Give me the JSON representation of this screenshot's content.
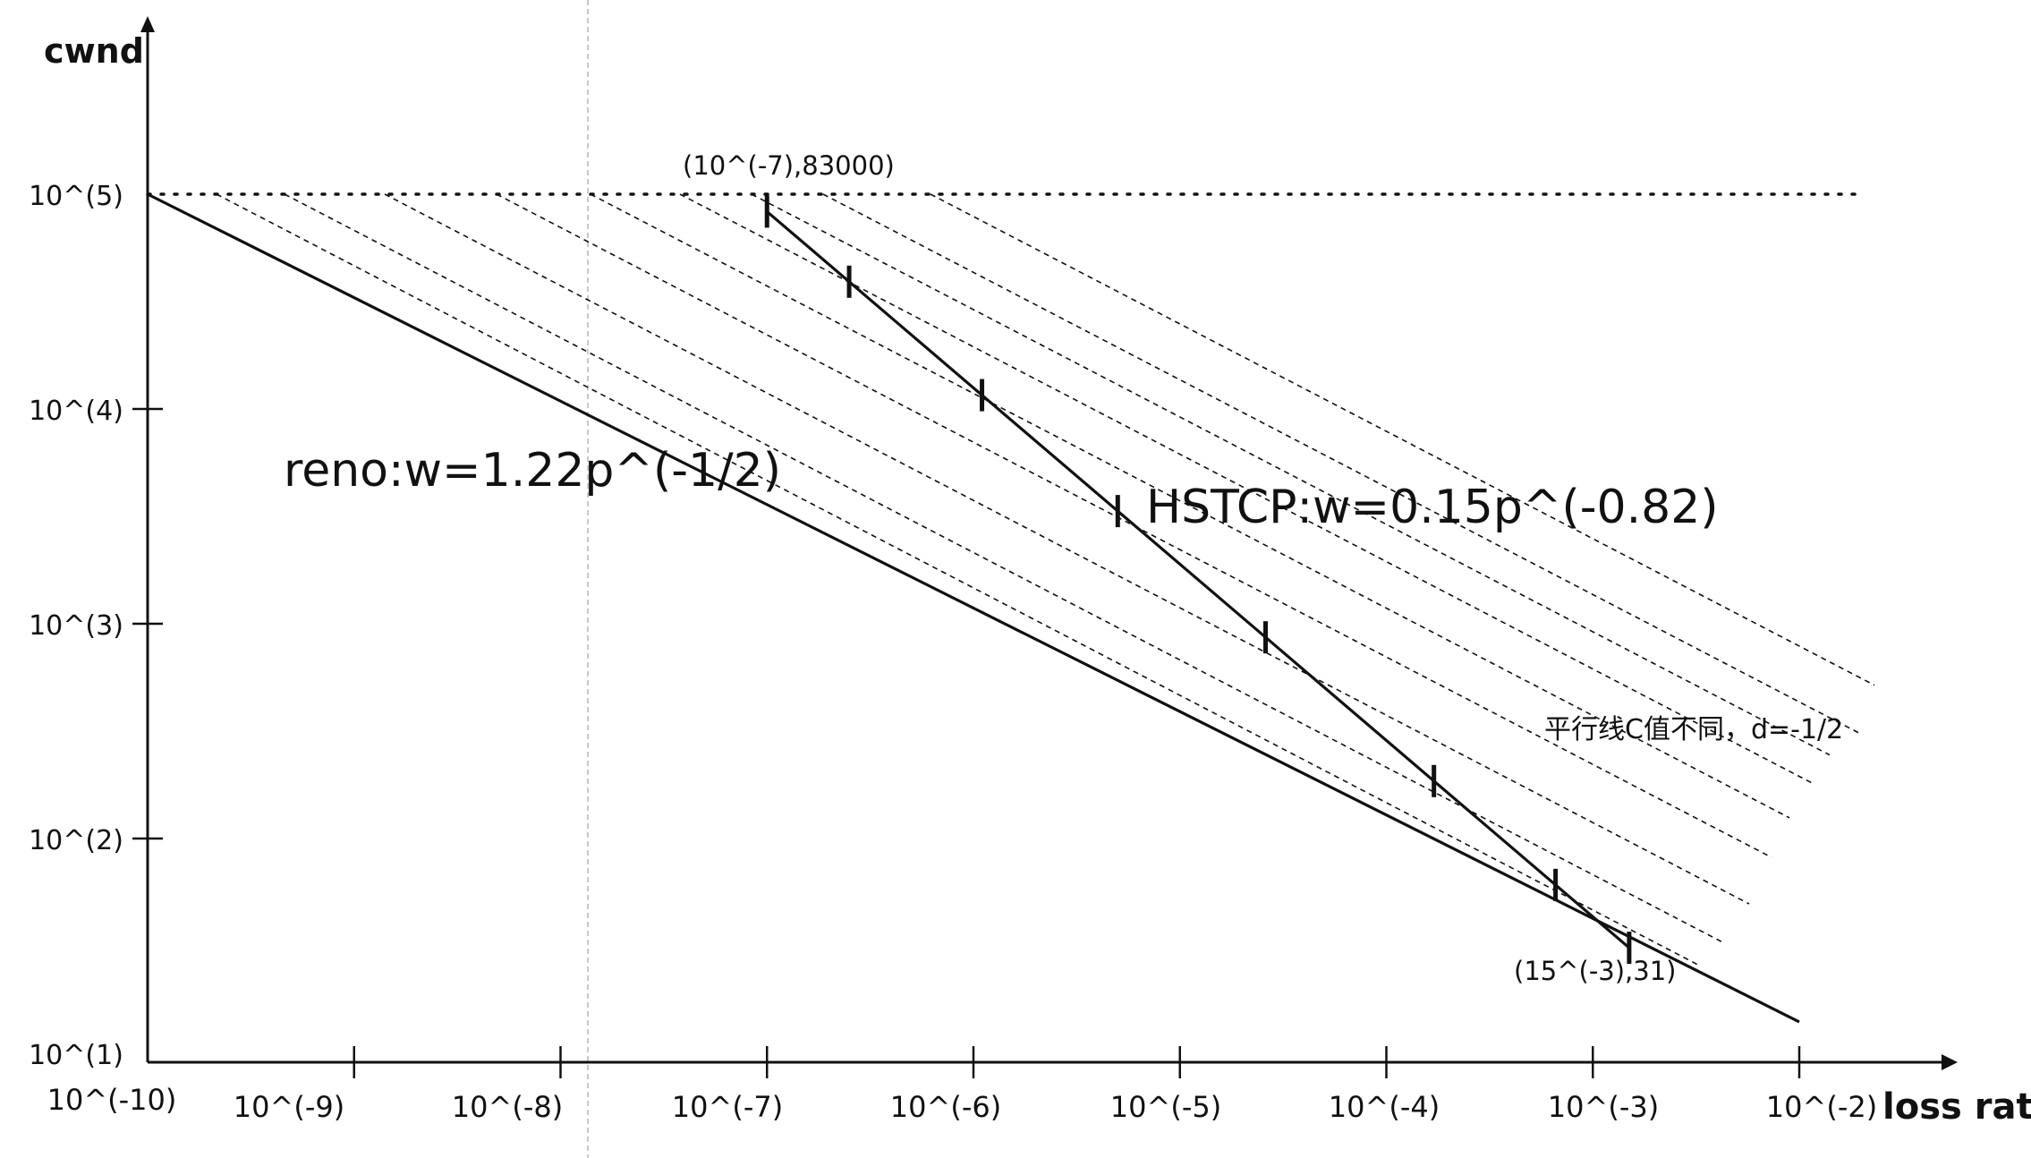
{
  "chart_data": {
    "type": "line",
    "xlabel": "loss rate",
    "ylabel": "cwnd",
    "x_tick_labels": [
      "10^(-10)",
      "10^(-9)",
      "10^(-8)",
      "10^(-7)",
      "10^(-6)",
      "10^(-5)",
      "10^(-4)",
      "10^(-3)",
      "10^(-2)"
    ],
    "y_tick_labels": [
      "10^(1)",
      "10^(2)",
      "10^(3)",
      "10^(4)",
      "10^(5)"
    ],
    "x_scale": "log",
    "y_scale": "log",
    "xlim": [
      1e-10,
      0.01
    ],
    "ylim": [
      10,
      100000
    ],
    "grid": false,
    "series": [
      {
        "name": "reno:w=1.22p^(-1/2)",
        "style": "solid",
        "x": [
          1e-10,
          0.01
        ],
        "y": [
          100000,
          14
        ]
      },
      {
        "name": "HSTCP:w=0.15p^(-0.82)",
        "style": "solid-with-ticks",
        "x": [
          1e-07,
          0.0015
        ],
        "y": [
          83000,
          31
        ],
        "tick_x": [
          1e-07,
          2.5e-07,
          1.1e-06,
          5e-06,
          2.6e-05,
          0.00017,
          0.00066,
          0.0015
        ]
      }
    ],
    "cap_line": {
      "y": 100000,
      "style": "dotted"
    },
    "parallel_lines": {
      "style": "dashed",
      "slope": -0.5,
      "count": 9
    },
    "annotations": [
      {
        "text": "(10^(-7),83000)",
        "x": 1e-07,
        "y": 83000
      },
      {
        "text": "(15^(-3),31)",
        "x": 0.0015,
        "y": 31
      },
      {
        "text": "reno:w=1.22p^(-1/2)"
      },
      {
        "text": "HSTCP:w=0.15p^(-0.82)"
      },
      {
        "text": "平行线C值不同，d=-1/2"
      }
    ],
    "colors": {
      "ink": "#111111",
      "guide": "#c8c8c8"
    }
  }
}
